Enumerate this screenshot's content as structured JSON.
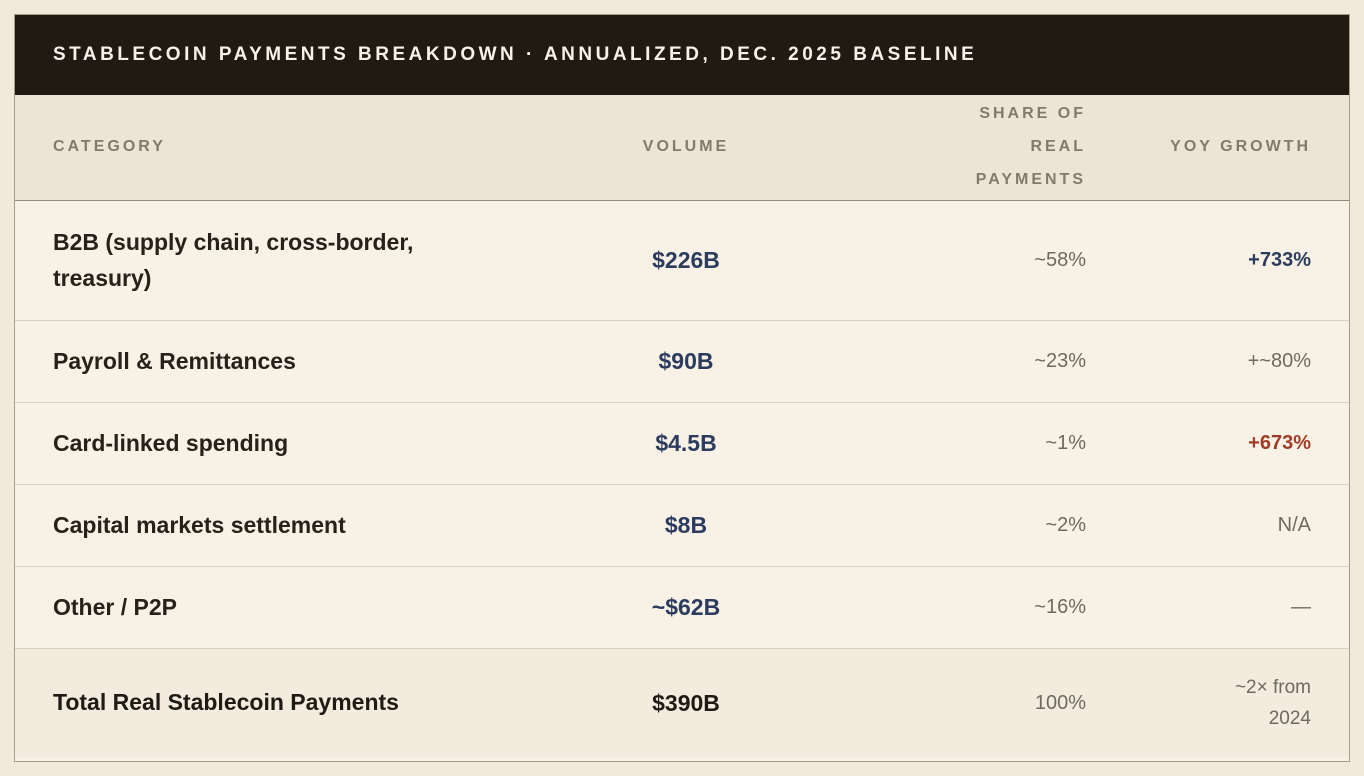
{
  "header": {
    "title": "STABLECOIN PAYMENTS BREAKDOWN · ANNUALIZED, DEC. 2025 BASELINE"
  },
  "table": {
    "columns": {
      "category": "CATEGORY",
      "volume": "VOLUME",
      "share": "SHARE OF REAL PAYMENTS",
      "yoy": "YOY GROWTH"
    },
    "rows": [
      {
        "category": "B2B (supply chain, cross-border, treasury)",
        "volume": "$226B",
        "share": "~58%",
        "yoy": "+733%"
      },
      {
        "category": "Payroll & Remittances",
        "volume": "$90B",
        "share": "~23%",
        "yoy": "+~80%"
      },
      {
        "category": "Card-linked spending",
        "volume": "$4.5B",
        "share": "~1%",
        "yoy": "+673%"
      },
      {
        "category": "Capital markets settlement",
        "volume": "$8B",
        "share": "~2%",
        "yoy": "N/A"
      },
      {
        "category": "Other / P2P",
        "volume": "~$62B",
        "share": "~16%",
        "yoy": "—"
      },
      {
        "category": "Total Real Stablecoin Payments",
        "volume": "$390B",
        "share": "100%",
        "yoy": "~2× from\n2024"
      }
    ]
  },
  "colors": {
    "page_background": "#f1eadb",
    "card_background": "#f7f1e6",
    "title_bar_background": "#201a13",
    "title_text": "#f7f2e9",
    "header_row_background": "#ece5d6",
    "header_text": "#84796a",
    "category_text": "#262119",
    "value_navy": "#2b3c5e",
    "growth_rust": "#a03c26",
    "muted_gray": "#6f6a60",
    "divider": "#d8d1c3"
  },
  "chart_data": {
    "type": "table",
    "title": "STABLECOIN PAYMENTS BREAKDOWN · ANNUALIZED, DEC. 2025 BASELINE",
    "columns": [
      "Category",
      "Volume",
      "Share of Real Payments",
      "YoY Growth"
    ],
    "rows": [
      [
        "B2B (supply chain, cross-border, treasury)",
        "$226B",
        "~58%",
        "+733%"
      ],
      [
        "Payroll & Remittances",
        "$90B",
        "~23%",
        "+~80%"
      ],
      [
        "Card-linked spending",
        "$4.5B",
        "~1%",
        "+673%"
      ],
      [
        "Capital markets settlement",
        "$8B",
        "~2%",
        "N/A"
      ],
      [
        "Other / P2P",
        "~$62B",
        "~16%",
        "—"
      ],
      [
        "Total Real Stablecoin Payments",
        "$390B",
        "100%",
        "~2× from 2024"
      ]
    ]
  }
}
